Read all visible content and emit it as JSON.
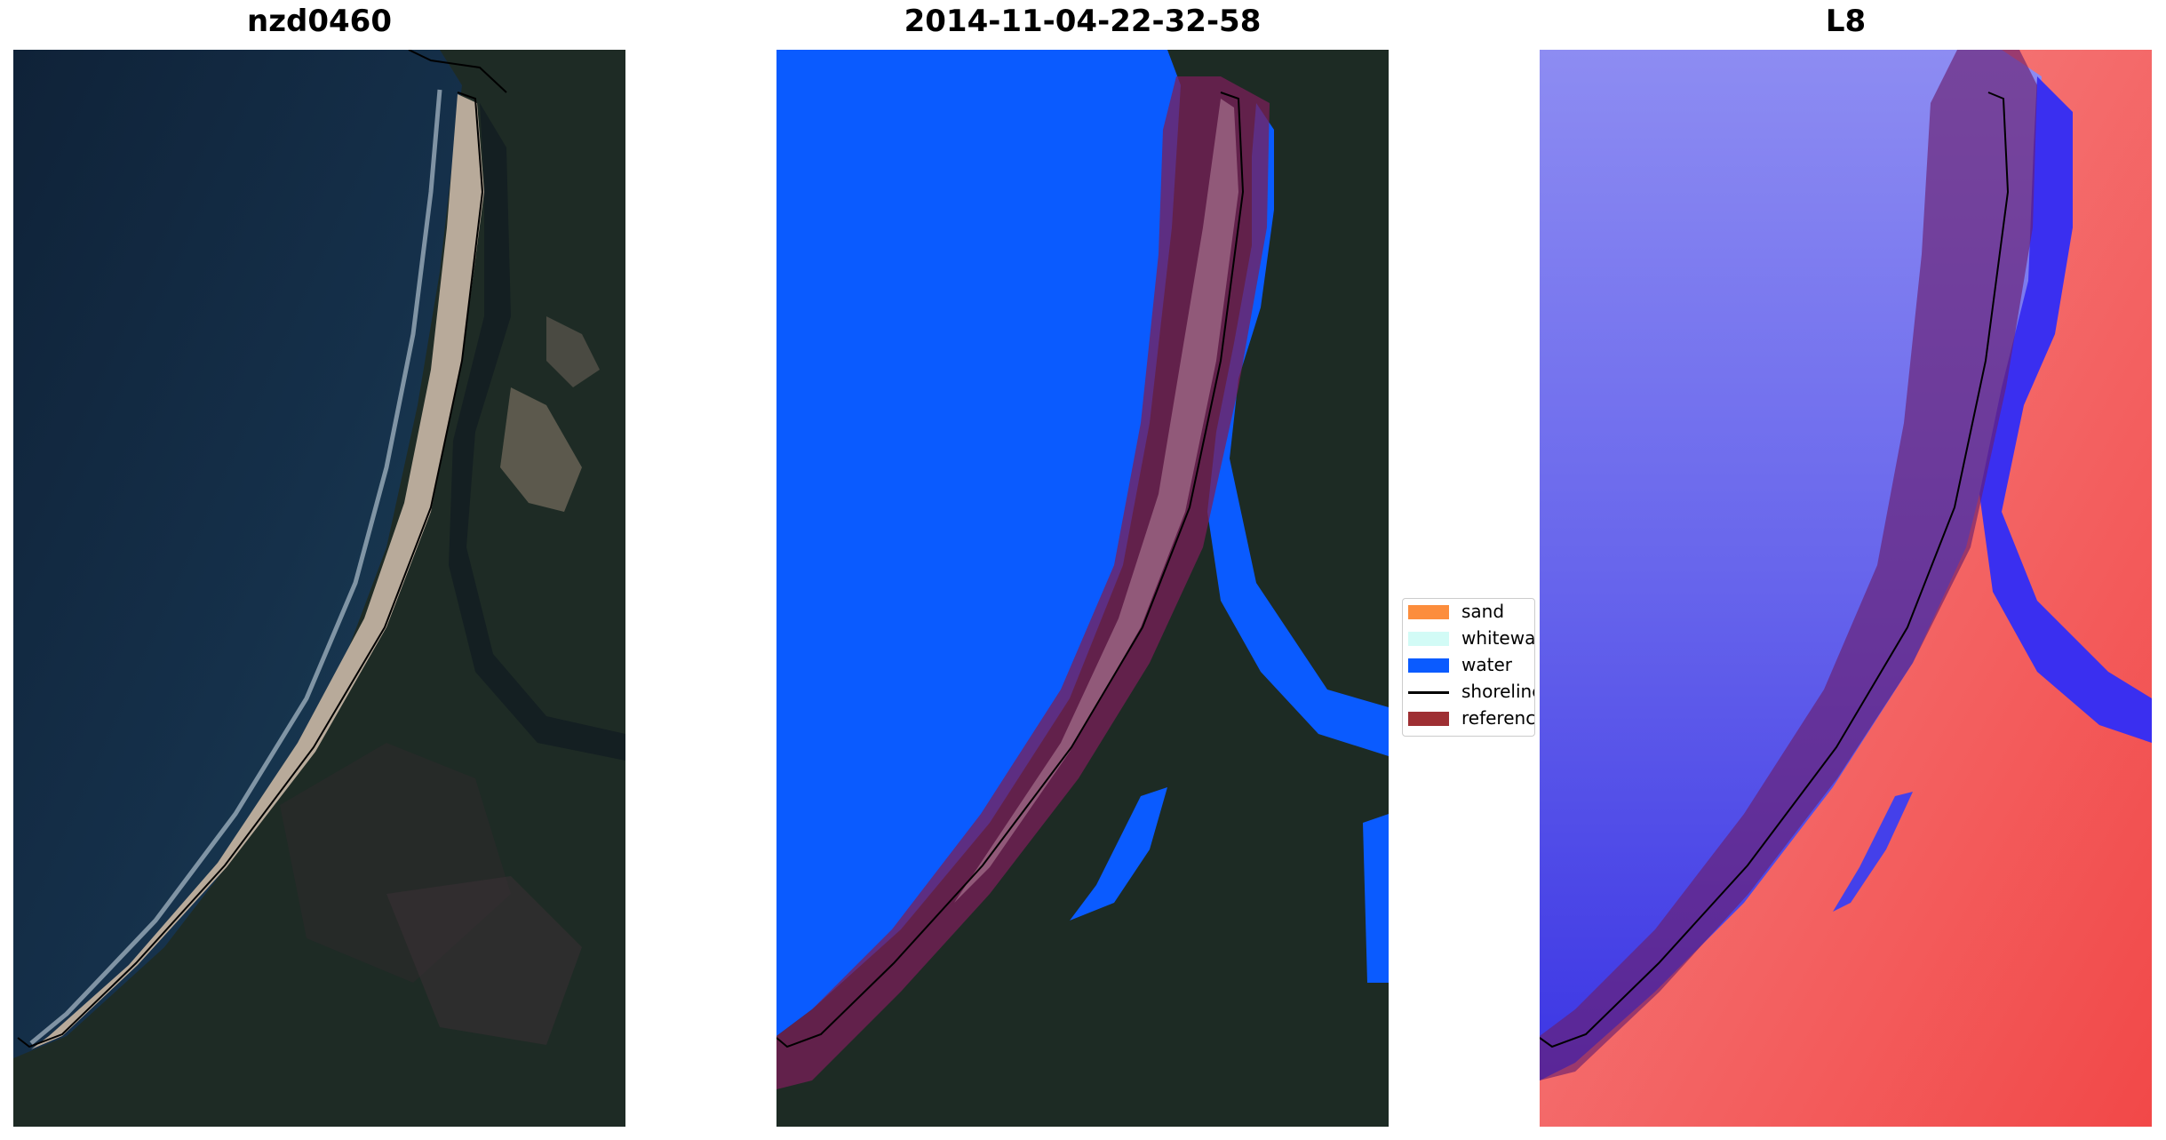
{
  "panels": [
    {
      "title": "nzd0460"
    },
    {
      "title": "2014-11-04-22-32-58"
    },
    {
      "title": "L8"
    }
  ],
  "legend": {
    "items": [
      {
        "label": "sand",
        "color": "#fc8d3c"
      },
      {
        "label": "whitewater",
        "color": "#d2fbf6"
      },
      {
        "label": "water",
        "color": "#0a5bff"
      },
      {
        "label": "shoreline",
        "color": "#000000"
      },
      {
        "label": "reference",
        "color": "#9e2f33"
      }
    ]
  },
  "colors": {
    "ocean_dark": "#10243d",
    "land_dark": "#1d2a24",
    "beach_sand": "#b6a898",
    "water_class": "#0a5bff",
    "reference_buffer": "#7a2050",
    "index_water": "#5a56ee",
    "index_land": "#f45a5a"
  }
}
